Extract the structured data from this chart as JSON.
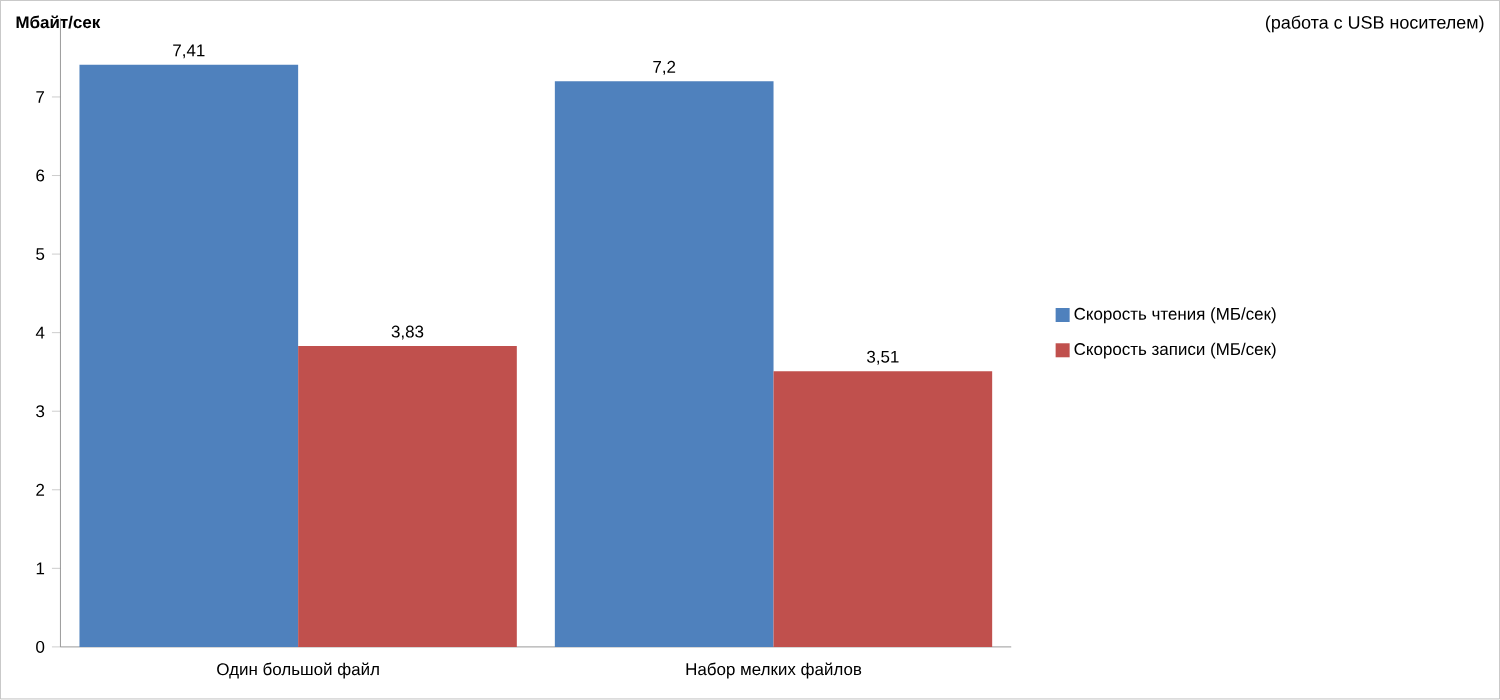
{
  "chart_data": {
    "type": "bar",
    "title": "(работа с USB носителем)",
    "ylabel": "Мбайт/сек",
    "categories": [
      "Один большой файл",
      "Набор мелких файлов"
    ],
    "series": [
      {
        "name": "Скорость чтения  (МБ/сек)",
        "color": "#4f81bd",
        "values": [
          7.41,
          7.2
        ],
        "value_labels": [
          "7,41",
          "7,2"
        ]
      },
      {
        "name": "Скорость записи (МБ/сек)",
        "color": "#c0504d",
        "values": [
          3.83,
          3.51
        ],
        "value_labels": [
          "3,83",
          "3,51"
        ]
      }
    ],
    "ylim": [
      0,
      8
    ],
    "yticks": [
      0,
      1,
      2,
      3,
      4,
      5,
      6,
      7
    ],
    "grid": false,
    "legend": "right"
  }
}
